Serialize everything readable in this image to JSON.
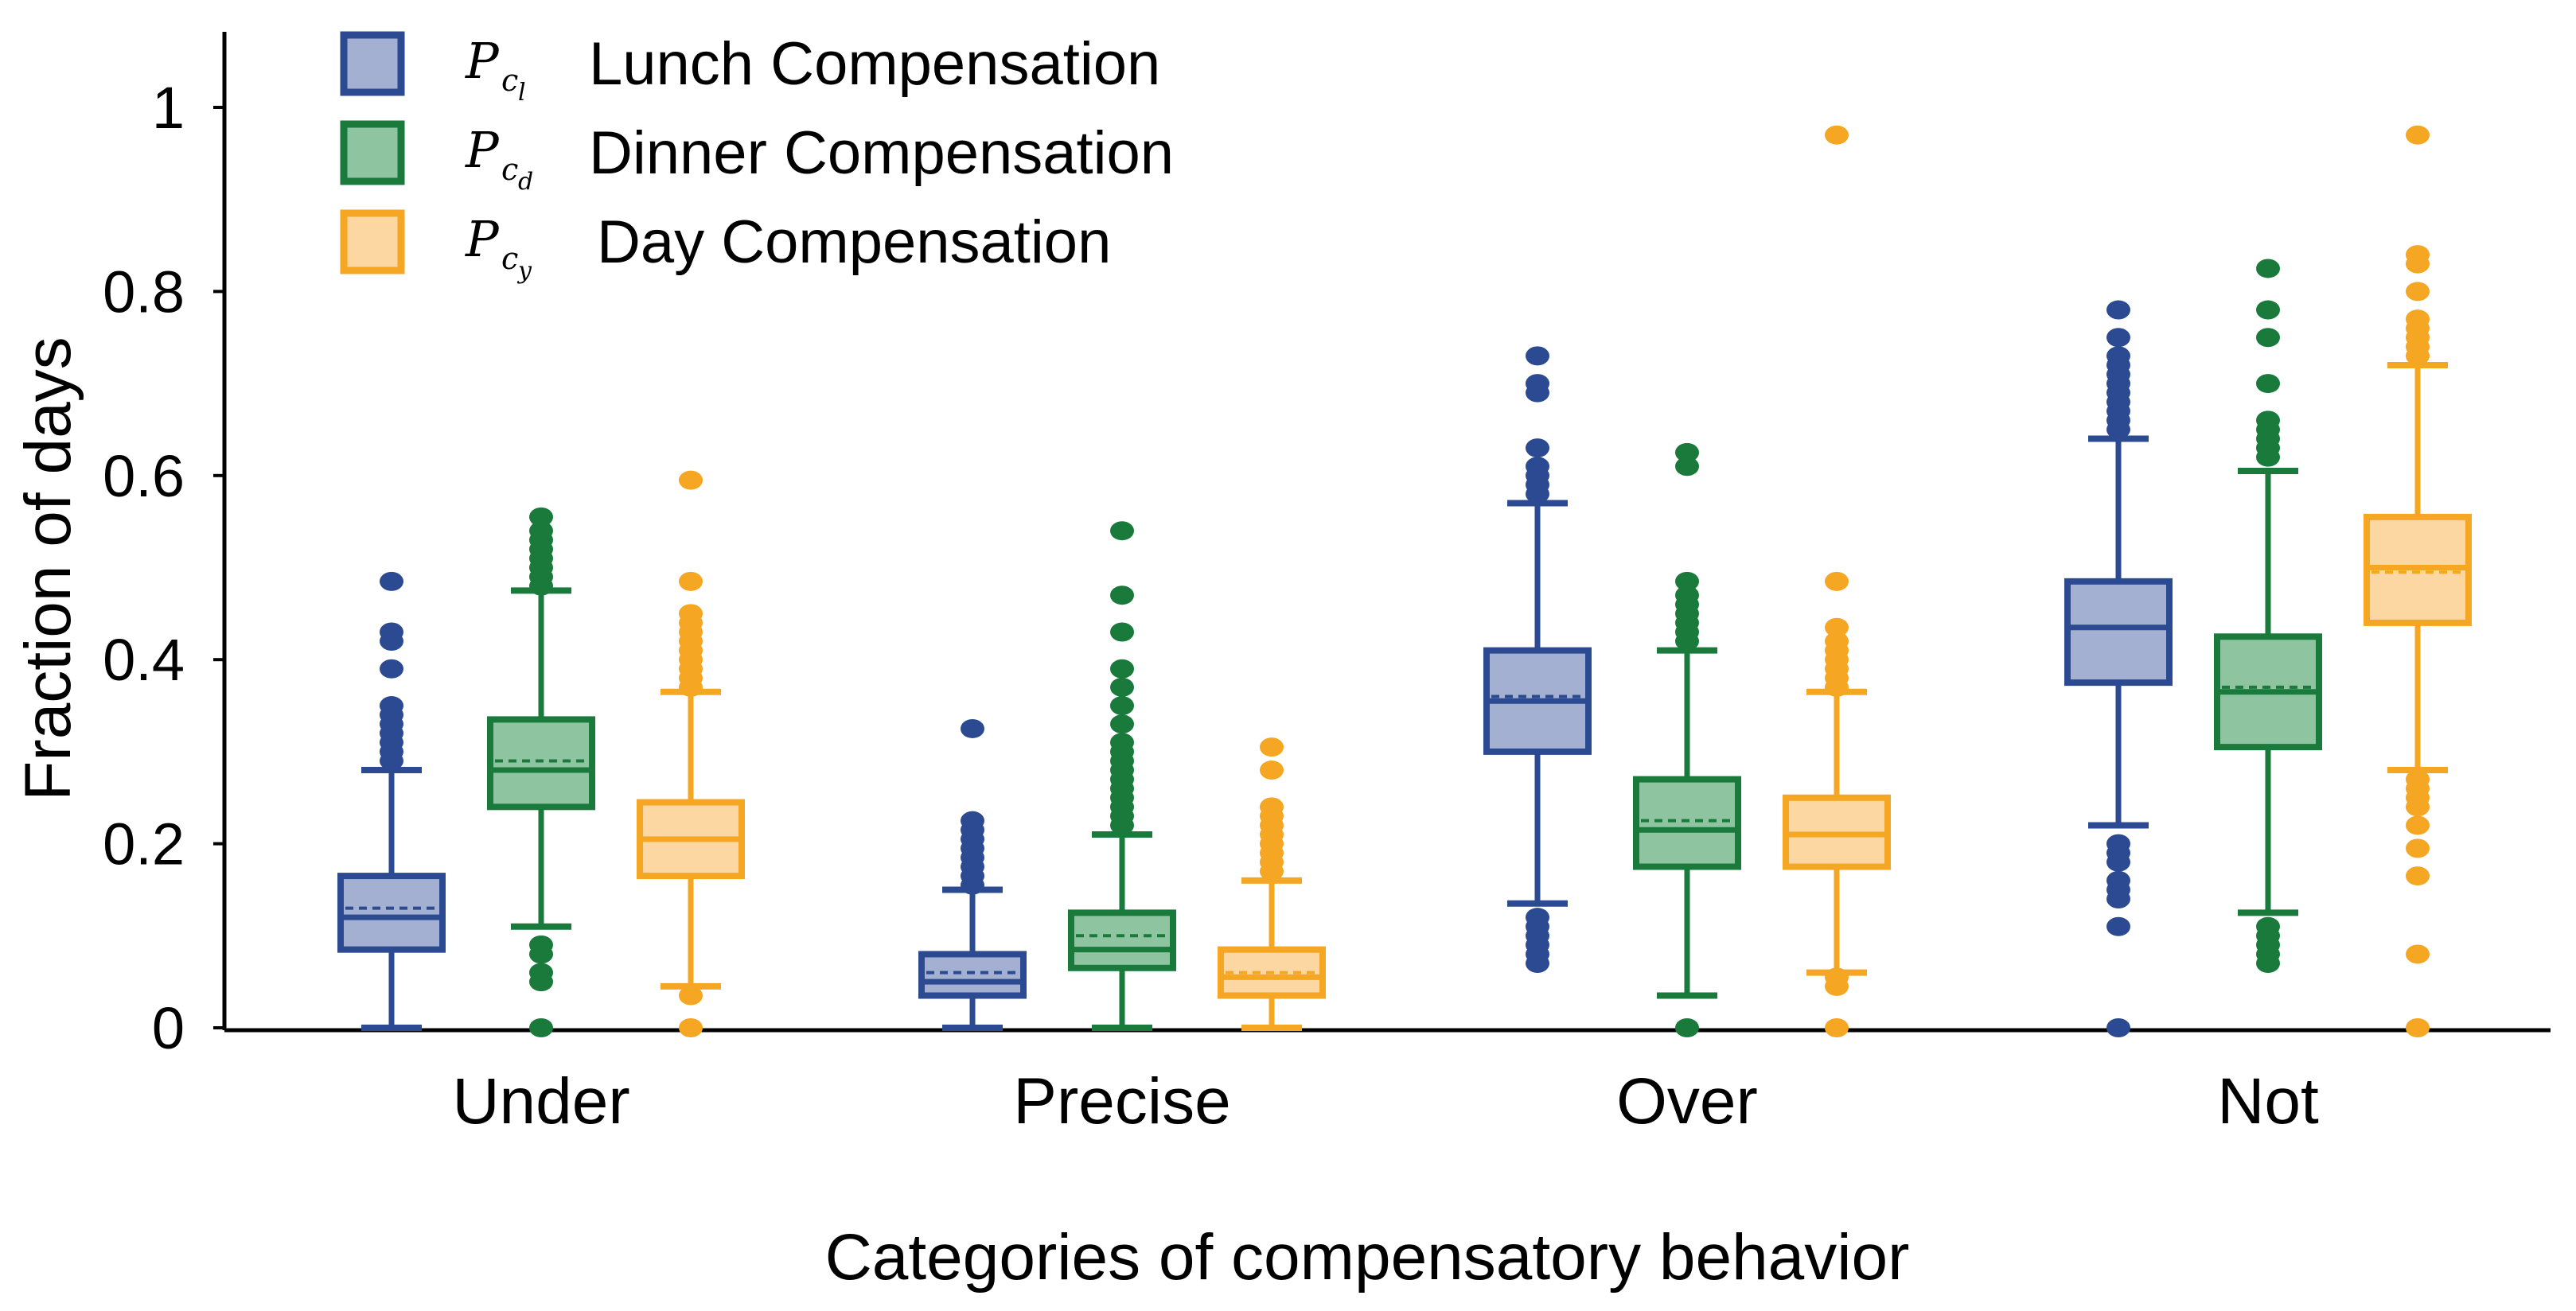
{
  "chart_data": {
    "type": "box",
    "title": "",
    "xlabel": "Categories of compensatory behavior",
    "ylabel": "Fraction of days",
    "ylim": [
      0,
      1.08
    ],
    "yticks": [
      {
        "value": 0,
        "label": "0"
      },
      {
        "value": 0.2,
        "label": "0.2"
      },
      {
        "value": 0.4,
        "label": "0.4"
      },
      {
        "value": 0.6,
        "label": "0.6"
      },
      {
        "value": 0.8,
        "label": "0.8"
      },
      {
        "value": 1,
        "label": "1"
      }
    ],
    "categories": [
      "Under",
      "Precise",
      "Over",
      "Not"
    ],
    "series": [
      {
        "name": "Lunch Compensation",
        "symbol": "P",
        "subscript": "c",
        "subsub": "l",
        "color": "#2b4a91",
        "fill": "#a3b0d2",
        "boxes": [
          {
            "q1": 0.085,
            "median": 0.12,
            "mean": 0.13,
            "q3": 0.165,
            "whisker_low": 0.0,
            "whisker_high": 0.28,
            "outliers": [
              0.29,
              0.3,
              0.31,
              0.32,
              0.33,
              0.34,
              0.35,
              0.39,
              0.42,
              0.43,
              0.485
            ]
          },
          {
            "q1": 0.035,
            "median": 0.05,
            "mean": 0.06,
            "q3": 0.08,
            "whisker_low": 0.0,
            "whisker_high": 0.15,
            "outliers": [
              0.155,
              0.165,
              0.175,
              0.185,
              0.195,
              0.205,
              0.215,
              0.225,
              0.325
            ]
          },
          {
            "q1": 0.3,
            "median": 0.355,
            "mean": 0.36,
            "q3": 0.41,
            "whisker_low": 0.135,
            "whisker_high": 0.57,
            "outliers": [
              0.07,
              0.08,
              0.09,
              0.1,
              0.11,
              0.12,
              0.58,
              0.59,
              0.6,
              0.61,
              0.63,
              0.69,
              0.7,
              0.73
            ]
          },
          {
            "q1": 0.375,
            "median": 0.435,
            "mean": 0.435,
            "q3": 0.485,
            "whisker_low": 0.22,
            "whisker_high": 0.64,
            "outliers": [
              0.0,
              0.11,
              0.14,
              0.15,
              0.16,
              0.18,
              0.19,
              0.2,
              0.65,
              0.66,
              0.67,
              0.68,
              0.69,
              0.7,
              0.71,
              0.72,
              0.73,
              0.75,
              0.78
            ]
          }
        ]
      },
      {
        "name": "Dinner Compensation",
        "symbol": "P",
        "subscript": "c",
        "subsub": "d",
        "color": "#1a7a3c",
        "fill": "#8fc4a0",
        "boxes": [
          {
            "q1": 0.24,
            "median": 0.28,
            "mean": 0.29,
            "q3": 0.335,
            "whisker_low": 0.11,
            "whisker_high": 0.475,
            "outliers": [
              0.0,
              0.05,
              0.06,
              0.08,
              0.09,
              0.48,
              0.49,
              0.5,
              0.51,
              0.52,
              0.53,
              0.54,
              0.555
            ]
          },
          {
            "q1": 0.065,
            "median": 0.085,
            "mean": 0.1,
            "q3": 0.125,
            "whisker_low": 0.0,
            "whisker_high": 0.21,
            "outliers": [
              0.22,
              0.23,
              0.24,
              0.25,
              0.26,
              0.27,
              0.28,
              0.29,
              0.3,
              0.31,
              0.33,
              0.35,
              0.37,
              0.39,
              0.43,
              0.47,
              0.54
            ]
          },
          {
            "q1": 0.175,
            "median": 0.215,
            "mean": 0.225,
            "q3": 0.27,
            "whisker_low": 0.035,
            "whisker_high": 0.41,
            "outliers": [
              0.0,
              0.42,
              0.43,
              0.44,
              0.45,
              0.46,
              0.47,
              0.485,
              0.61,
              0.625
            ]
          },
          {
            "q1": 0.305,
            "median": 0.365,
            "mean": 0.37,
            "q3": 0.425,
            "whisker_low": 0.125,
            "whisker_high": 0.605,
            "outliers": [
              0.07,
              0.08,
              0.09,
              0.1,
              0.11,
              0.62,
              0.63,
              0.64,
              0.65,
              0.66,
              0.7,
              0.75,
              0.78,
              0.825
            ]
          }
        ]
      },
      {
        "name": "Day Compensation",
        "symbol": "P",
        "subscript": "c",
        "subsub": "y",
        "color": "#f5a623",
        "fill": "#fcd7a1",
        "boxes": [
          {
            "q1": 0.165,
            "median": 0.205,
            "mean": 0.205,
            "q3": 0.245,
            "whisker_low": 0.045,
            "whisker_high": 0.365,
            "outliers": [
              0.0,
              0.035,
              0.37,
              0.38,
              0.39,
              0.4,
              0.41,
              0.42,
              0.43,
              0.44,
              0.45,
              0.485,
              0.595
            ]
          },
          {
            "q1": 0.035,
            "median": 0.055,
            "mean": 0.06,
            "q3": 0.085,
            "whisker_low": 0.0,
            "whisker_high": 0.16,
            "outliers": [
              0.17,
              0.18,
              0.19,
              0.2,
              0.21,
              0.22,
              0.23,
              0.24,
              0.28,
              0.305
            ]
          },
          {
            "q1": 0.175,
            "median": 0.21,
            "mean": 0.21,
            "q3": 0.25,
            "whisker_low": 0.06,
            "whisker_high": 0.365,
            "outliers": [
              0.0,
              0.045,
              0.055,
              0.37,
              0.38,
              0.39,
              0.4,
              0.41,
              0.42,
              0.435,
              0.485,
              0.97
            ]
          },
          {
            "q1": 0.44,
            "median": 0.5,
            "mean": 0.495,
            "q3": 0.555,
            "whisker_low": 0.28,
            "whisker_high": 0.72,
            "outliers": [
              0.0,
              0.08,
              0.165,
              0.195,
              0.22,
              0.24,
              0.25,
              0.26,
              0.27,
              0.73,
              0.74,
              0.75,
              0.76,
              0.77,
              0.8,
              0.83,
              0.84,
              0.97
            ]
          }
        ]
      }
    ],
    "legend_position": "top-left"
  }
}
